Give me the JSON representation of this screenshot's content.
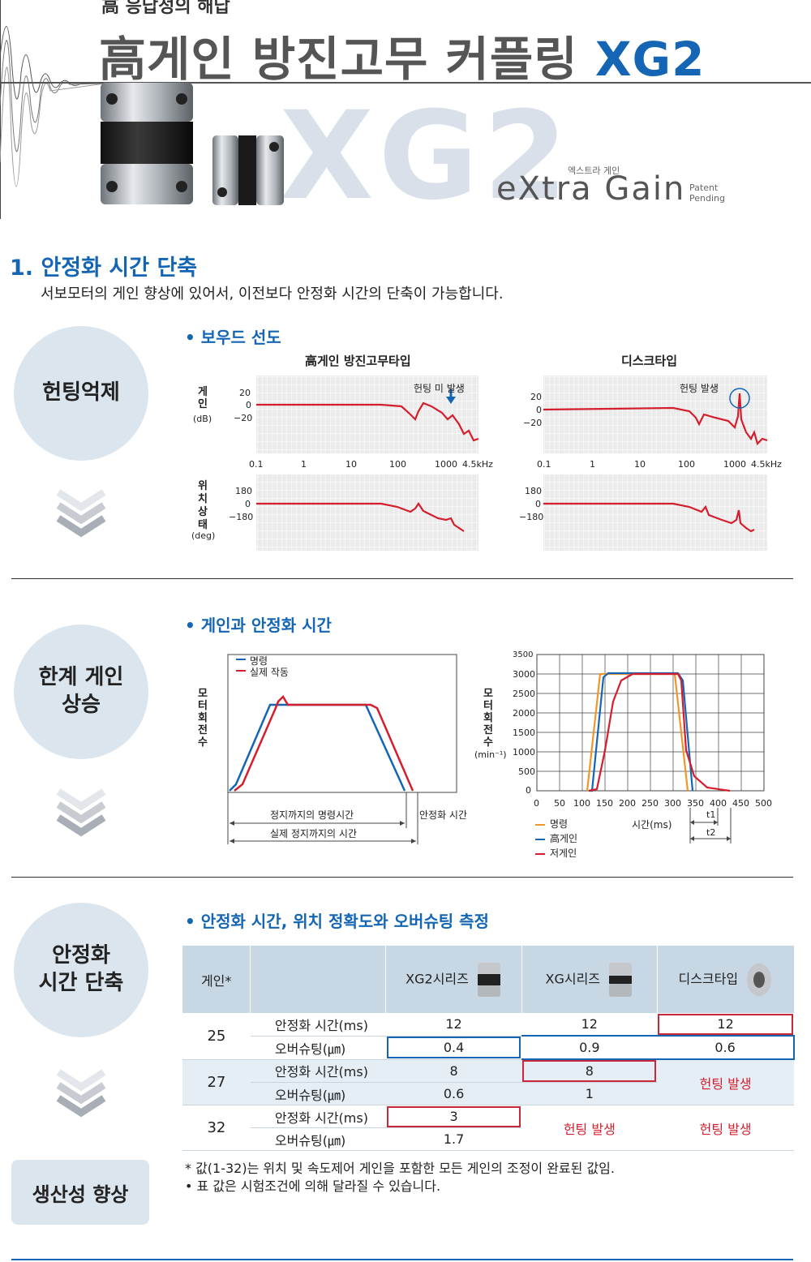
{
  "header": {
    "subtitle": "高 응답성의 해답",
    "title_main": "高게인 방진고무 커플링 ",
    "title_accent": "XG2",
    "big_logo": "XG2",
    "gain_logo": "eXtra Gain",
    "gain_ko": "엑스트라 게인",
    "patent_line1": "Patent",
    "patent_line2": "Pending"
  },
  "section1": {
    "title": "1.  안정화 시간 단축",
    "desc": "서보모터의 게인 향상에 있어서, 이전보다 안정화 시간의 단축이 가능합니다."
  },
  "side_labels": {
    "hunting": "헌팅억제",
    "gain_line1": "한계 게인",
    "gain_line2": "상승",
    "settle_line1": "안정화",
    "settle_line2": "시간 단축",
    "productivity": "생산성 향상"
  },
  "bode": {
    "heading": "• 보우드 선도",
    "left_title": "高게인 방진고무타입",
    "right_title": "디스크타입",
    "gain_axis": [
      "게",
      "인"
    ],
    "gain_unit": "(dB)",
    "phase_axis": [
      "위",
      "치",
      "상",
      "태"
    ],
    "phase_unit": "(deg)",
    "gain_ticks": [
      "20",
      "0",
      "−20"
    ],
    "phase_ticks": [
      "180",
      "0",
      "−180"
    ],
    "freq_ticks": [
      "0.1",
      "1",
      "10",
      "100",
      "1000",
      "4.5kHz"
    ],
    "left_annotation": "헌팅 미 발생",
    "right_annotation": "헌팅 발생"
  },
  "gain_section": {
    "heading": "• 게인과 안정화 시간",
    "left_legend_cmd": "명령",
    "left_legend_act": "실제 작동",
    "left_axis": [
      "모",
      "터",
      "회",
      "전",
      "수"
    ],
    "cmd_time_label": "정지까지의 명령시간",
    "settle_label": "안정화 시간",
    "actual_time_label": "실제 정지까지의 시간",
    "right_axis": [
      "모",
      "터",
      "회",
      "전",
      "수"
    ],
    "right_unit": "(min⁻¹)",
    "y_ticks": [
      "3500",
      "3000",
      "2500",
      "2000",
      "1500",
      "1000",
      "500",
      "0"
    ],
    "x_ticks": [
      "0",
      "50",
      "100",
      "150",
      "200",
      "250",
      "300",
      "350",
      "400",
      "450",
      "500"
    ],
    "x_label": "시간(ms)",
    "legend_cmd": "명령",
    "legend_high": "高게인",
    "legend_low": "저게인",
    "t1": "t1",
    "t2": "t2"
  },
  "table_section": {
    "heading": "• 안정화 시간, 위치 정확도와 오버슈팅 측정",
    "head_gain": "게인*",
    "head_xg2": "XG2시리즈",
    "head_xg": "XG시리즈",
    "head_disc": "디스크타입",
    "settle_label": "안정화 시간(ms)",
    "over_label": "오버슈팅(㎛)",
    "hunting": "헌팅 발생",
    "rows": [
      {
        "gain": "25",
        "settle": [
          "12",
          "12",
          "12"
        ],
        "over": [
          "0.4",
          "0.9",
          "0.6"
        ]
      },
      {
        "gain": "27",
        "settle": [
          "8",
          "8"
        ],
        "over": [
          "0.6",
          "1"
        ]
      },
      {
        "gain": "32",
        "settle": [
          "3"
        ],
        "over": [
          "1.7"
        ]
      }
    ],
    "note1": "* 값(1-32)는 위치 및 속도제어 게인을 포함한 모든 게인의 조정이 완료된 값임.",
    "note2": "• 표 값은 시험조건에 의해 달라질 수 있습니다."
  },
  "colors": {
    "accent": "#1466b5",
    "red": "#d41e2e",
    "orange": "#f0962a",
    "circle_bg": "#dbe5ee"
  }
}
